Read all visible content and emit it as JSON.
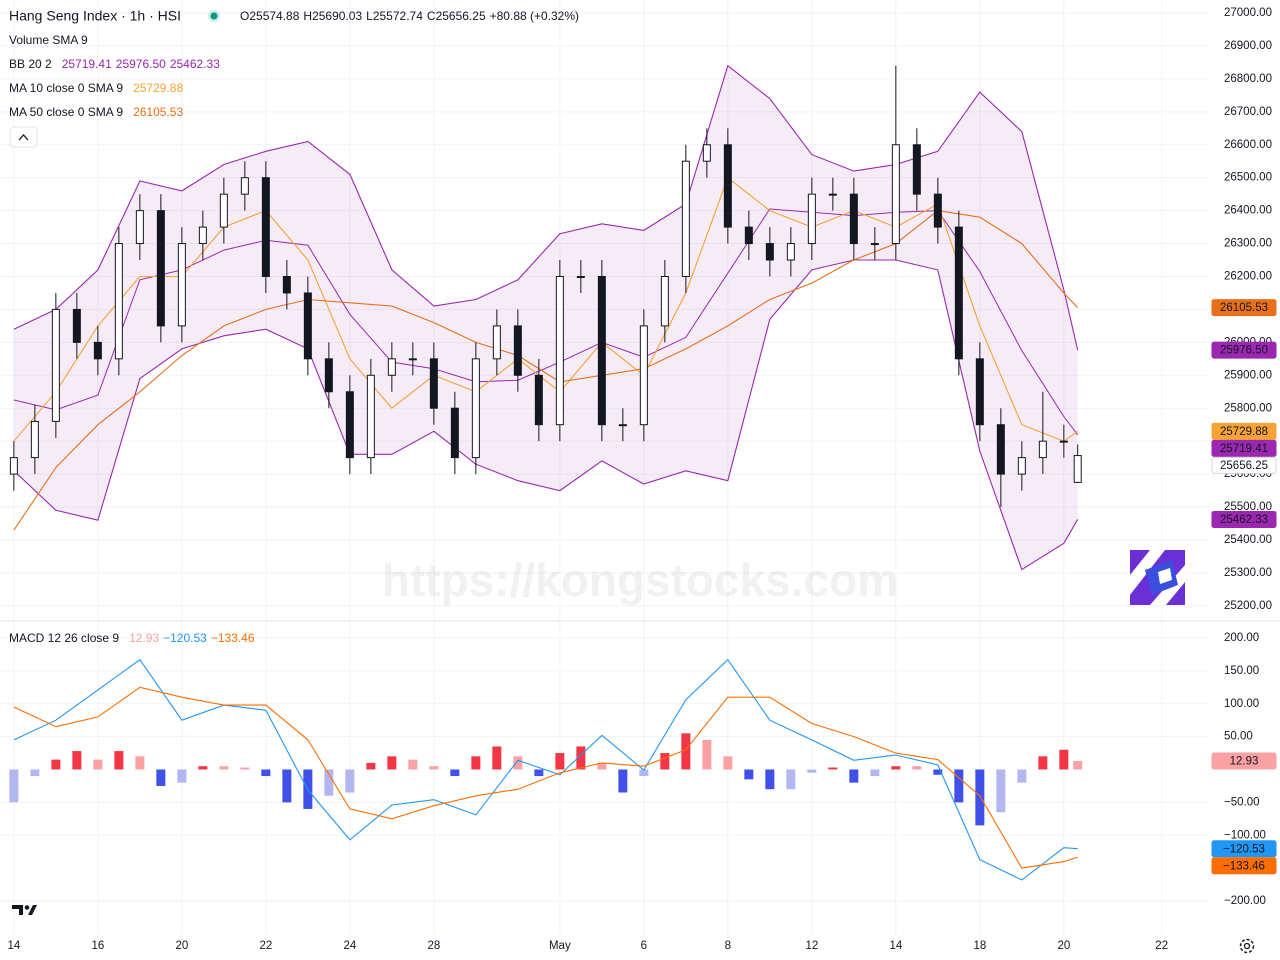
{
  "chart_data": [
    {
      "type": "candlestick",
      "title": "Hang Seng Index · 1h · HSI",
      "ohlc_labels": [
        "O",
        "H",
        "L",
        "C"
      ],
      "ohlc_values": [
        25574.88,
        25690.03,
        25572.74,
        25656.25
      ],
      "change": "+80.88 (+0.32%)",
      "volume_label": "Volume SMA 9",
      "watermark": "https://kongstocks.com",
      "up_color": "#ffffff",
      "down_color": "#131722",
      "last_price_color": "#ffffff",
      "grid": true,
      "xlim": [
        -0.33,
        28.48
      ],
      "ylim": [
        25157,
        27039.5
      ],
      "xticks": [
        {
          "value": 0,
          "label": "14"
        },
        {
          "value": 2,
          "label": "16"
        },
        {
          "value": 4,
          "label": "20"
        },
        {
          "value": 6,
          "label": "22"
        },
        {
          "value": 8,
          "label": "24"
        },
        {
          "value": 10,
          "label": "28"
        },
        {
          "value": 13,
          "label": "May"
        },
        {
          "value": 15,
          "label": "6"
        },
        {
          "value": 17,
          "label": "8"
        },
        {
          "value": 19,
          "label": "12"
        },
        {
          "value": 21,
          "label": "14"
        },
        {
          "value": 23,
          "label": "18"
        },
        {
          "value": 25,
          "label": "20"
        },
        {
          "value": 27.33,
          "label": "22"
        }
      ],
      "yticks": [
        {
          "value": 25200,
          "label": "25200.00"
        },
        {
          "value": 25300,
          "label": "25300.00"
        },
        {
          "value": 25400,
          "label": "25400.00"
        },
        {
          "value": 25500,
          "label": "25500.00"
        },
        {
          "value": 25600,
          "label": "25600.00"
        },
        {
          "value": 25700,
          "label": "25700.00"
        },
        {
          "value": 25800,
          "label": "25800.00"
        },
        {
          "value": 25900,
          "label": "25900.00"
        },
        {
          "value": 26000,
          "label": "26000.00"
        },
        {
          "value": 26100,
          "label": "26100.00"
        },
        {
          "value": 26200,
          "label": "26200.00"
        },
        {
          "value": 26300,
          "label": "26300.00"
        },
        {
          "value": 26400,
          "label": "26400.00"
        },
        {
          "value": 26500,
          "label": "26500.00"
        },
        {
          "value": 26600,
          "label": "26600.00"
        },
        {
          "value": 26700,
          "label": "26700.00"
        },
        {
          "value": 26800,
          "label": "26800.00"
        },
        {
          "value": 26900,
          "label": "26900.00"
        },
        {
          "value": 27000,
          "label": "27000.00"
        }
      ],
      "x": [
        0,
        0.5,
        1,
        1.5,
        2,
        2.5,
        3,
        3.5,
        4,
        4.5,
        5,
        5.5,
        6,
        6.5,
        7,
        7.5,
        8,
        8.5,
        9,
        9.5,
        10,
        10.5,
        11,
        11.5,
        12,
        12.5,
        13,
        13.5,
        14,
        14.5,
        15,
        15.5,
        16,
        16.5,
        17,
        17.5,
        18,
        18.5,
        19,
        19.5,
        20,
        20.5,
        21,
        21.5,
        22,
        22.5,
        23,
        23.5,
        24,
        24.5,
        25,
        25.33
      ],
      "open": [
        25600,
        25650,
        25760,
        26100,
        26000,
        25950,
        26300,
        26400,
        26050,
        26300,
        26350,
        26450,
        26500,
        26200,
        26150,
        25950,
        25850,
        25650,
        25900,
        25950,
        25950,
        25800,
        25650,
        25950,
        26050,
        25900,
        25750,
        26200,
        26200,
        25750,
        25750,
        26050,
        26200,
        26550,
        26600,
        26350,
        26300,
        26250,
        26300,
        26450,
        26450,
        26300,
        26300,
        26600,
        26450,
        26350,
        25950,
        25750,
        25600,
        25650,
        25700,
        25574.88
      ],
      "high": [
        25700,
        25810,
        26150,
        26150,
        26050,
        26350,
        26450,
        26450,
        26350,
        26400,
        26500,
        26550,
        26550,
        26250,
        26200,
        26000,
        25900,
        25950,
        26000,
        26000,
        26000,
        25850,
        26000,
        26100,
        26100,
        25950,
        26250,
        26250,
        26250,
        25800,
        26100,
        26250,
        26600,
        26650,
        26650,
        26400,
        26350,
        26350,
        26500,
        26500,
        26500,
        26350,
        26840,
        26650,
        26500,
        26400,
        26000,
        25800,
        25700,
        25850,
        25750,
        25690.03
      ],
      "low": [
        25550,
        25600,
        25710,
        25950,
        25900,
        25900,
        26250,
        26000,
        26000,
        26250,
        26300,
        26400,
        26150,
        26100,
        25900,
        25800,
        25600,
        25600,
        25850,
        25900,
        25750,
        25600,
        25600,
        25900,
        25850,
        25700,
        25700,
        26150,
        25700,
        25700,
        25700,
        26000,
        26150,
        26500,
        26300,
        26250,
        26200,
        26200,
        26250,
        26400,
        26250,
        26250,
        26250,
        26400,
        26300,
        25900,
        25700,
        25500,
        25550,
        25600,
        25650,
        25572.74
      ],
      "close": [
        25650,
        25760,
        26100,
        26000,
        25950,
        26300,
        26400,
        26050,
        26300,
        26350,
        26450,
        26500,
        26200,
        26150,
        25950,
        25850,
        25650,
        25900,
        25950,
        25950,
        25800,
        25650,
        25950,
        26050,
        25900,
        25750,
        26200,
        26200,
        25750,
        25750,
        26050,
        26200,
        26550,
        26600,
        26350,
        26300,
        26250,
        26300,
        26450,
        26450,
        26300,
        26300,
        26600,
        26450,
        26350,
        25950,
        25750,
        25600,
        25650,
        25700,
        25700,
        25656.25
      ],
      "bands": {
        "name": "BB 20 2",
        "color": "#9c27b0",
        "fill": "rgba(156,39,176,0.09)",
        "x": [
          0,
          1,
          2,
          3,
          4,
          5,
          6,
          7,
          8,
          9,
          10,
          11,
          12,
          13,
          14,
          15,
          16,
          17,
          18,
          19,
          20,
          21,
          22,
          23,
          24,
          25,
          25.33
        ],
        "basis": [
          25825,
          25795,
          25840,
          26190,
          26220,
          26280,
          26310,
          26295,
          26085,
          25940,
          25920,
          25880,
          25885,
          25940,
          26000,
          25955,
          26015,
          26210,
          26405,
          26395,
          26385,
          26395,
          26400,
          26215,
          25975,
          25775,
          25719.41
        ],
        "upper": [
          26040,
          26100,
          26220,
          26490,
          26460,
          26540,
          26580,
          26610,
          26510,
          26220,
          26110,
          26130,
          26190,
          26330,
          26360,
          26340,
          26420,
          26840,
          26740,
          26570,
          26520,
          26540,
          26580,
          26760,
          26640,
          26160,
          25976.5
        ],
        "lower": [
          25610,
          25490,
          25460,
          25890,
          25980,
          26020,
          26040,
          25980,
          25660,
          25660,
          25730,
          25630,
          25580,
          25550,
          25640,
          25570,
          25610,
          25580,
          26070,
          26220,
          26250,
          26250,
          26220,
          25670,
          25310,
          25390,
          25462.33
        ],
        "labels": [
          "25719.41",
          "25976.50",
          "25462.33"
        ]
      },
      "series": [
        {
          "name": "MA 10 close 0 SMA 9",
          "color": "#f7a234",
          "label": "25729.88",
          "x": [
            0,
            1,
            2,
            3,
            4,
            5,
            6,
            7,
            8,
            9,
            10,
            11,
            12,
            13,
            14,
            15,
            16,
            17,
            18,
            19,
            20,
            21,
            22,
            23,
            24,
            25,
            25.33
          ],
          "values": [
            25700,
            25850,
            26050,
            26200,
            26200,
            26350,
            26400,
            26250,
            25950,
            25800,
            25900,
            25850,
            25950,
            25850,
            26000,
            25900,
            26150,
            26500,
            26400,
            26350,
            26400,
            26350,
            26420,
            26050,
            25750,
            25700,
            25729.88
          ]
        },
        {
          "name": "MA 50 close 0 SMA 9",
          "color": "#e8701a",
          "label": "26105.53",
          "x": [
            0,
            1,
            2,
            3,
            4,
            5,
            6,
            7,
            8,
            9,
            10,
            11,
            12,
            13,
            14,
            15,
            16,
            17,
            18,
            19,
            20,
            21,
            22,
            23,
            24,
            25,
            25.33
          ],
          "values": [
            25430,
            25620,
            25750,
            25850,
            25960,
            26050,
            26100,
            26130,
            26120,
            26110,
            26060,
            26000,
            25960,
            25880,
            25900,
            25920,
            25980,
            26050,
            26130,
            26180,
            26250,
            26300,
            26400,
            26380,
            26300,
            26150,
            26105.53
          ]
        }
      ]
    },
    {
      "type": "macd",
      "title": "MACD 12 26 close 9",
      "xlim": [
        -0.33,
        28.48
      ],
      "ylim": [
        -251.7,
        224.3
      ],
      "yticks": [
        {
          "value": -200,
          "label": "−200.00"
        },
        {
          "value": -100,
          "label": "−100.00"
        },
        {
          "value": -50,
          "label": "−50.00"
        },
        {
          "value": 50,
          "label": "50.00"
        },
        {
          "value": 100,
          "label": "100.00"
        },
        {
          "value": 150,
          "label": "150.00"
        },
        {
          "value": 200,
          "label": "200.00"
        }
      ],
      "grid": true,
      "histogram": {
        "label": "12.93",
        "color": "#faa1a4",
        "colors": {
          "above_rising": "#f23645",
          "above_falling": "#faa1a4",
          "below_falling": "#3f51e8",
          "below_rising": "#b2b8ef"
        },
        "x": [
          0,
          0.5,
          1,
          1.5,
          2,
          2.5,
          3,
          3.5,
          4,
          4.5,
          5,
          5.5,
          6,
          6.5,
          7,
          7.5,
          8,
          8.5,
          9,
          9.5,
          10,
          10.5,
          11,
          11.5,
          12,
          12.5,
          13,
          13.5,
          14,
          14.5,
          15,
          15.5,
          16,
          16.5,
          17,
          17.5,
          18,
          18.5,
          19,
          19.5,
          20,
          20.5,
          21,
          21.5,
          22,
          22.5,
          23,
          23.5,
          24,
          24.5,
          25,
          25.33
        ],
        "values": [
          -50,
          -10,
          15,
          28,
          15,
          28,
          20,
          -25,
          -20,
          5,
          5,
          3,
          -10,
          -50,
          -60,
          -40,
          -35,
          10,
          20,
          15,
          5,
          -10,
          20,
          35,
          20,
          -10,
          25,
          35,
          10,
          -35,
          -10,
          25,
          55,
          45,
          20,
          -15,
          -30,
          -30,
          -5,
          3,
          -20,
          -10,
          5,
          5,
          -8,
          -50,
          -85,
          -65,
          -20,
          20,
          30,
          12.93
        ]
      },
      "series": [
        {
          "color": "#2196f3",
          "label": "−120.53",
          "x": [
            0,
            1,
            2,
            3,
            4,
            5,
            6,
            7,
            8,
            9,
            10,
            11,
            12,
            13,
            14,
            15,
            16,
            17,
            18,
            19,
            20,
            21,
            22,
            23,
            24,
            25,
            25.33
          ],
          "values": [
            45,
            75,
            121,
            167,
            75,
            98,
            90,
            -31,
            -107,
            -54,
            -46,
            -69,
            14,
            -8,
            52,
            -1,
            106,
            167,
            75,
            45,
            14,
            22,
            7,
            -137,
            -168,
            -119,
            -120.53
          ]
        },
        {
          "color": "#ff6d00",
          "label": "−133.46",
          "x": [
            0,
            1,
            2,
            3,
            4,
            5,
            6,
            7,
            8,
            9,
            10,
            11,
            12,
            13,
            14,
            15,
            16,
            17,
            18,
            19,
            20,
            21,
            22,
            23,
            24,
            25,
            25.33
          ],
          "values": [
            95,
            65,
            80,
            125,
            110,
            98,
            98,
            45,
            -60,
            -75,
            -55,
            -40,
            -30,
            -5,
            10,
            5,
            30,
            110,
            110,
            70,
            50,
            25,
            15,
            -40,
            -150,
            -140,
            -133.46
          ]
        }
      ]
    }
  ]
}
